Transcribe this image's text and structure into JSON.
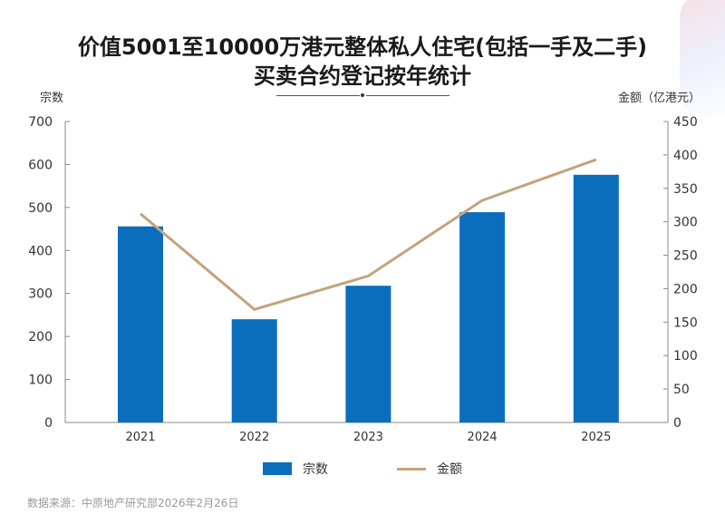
{
  "chart_data": {
    "type": "bar+line",
    "title": "价值5001至10000万港元整体私人住宅(包括一手及二手)",
    "subtitle": "买卖合约登记按年统计",
    "categories": [
      "2021",
      "2022",
      "2023",
      "2024",
      "2025"
    ],
    "series": [
      {
        "name": "宗数",
        "type": "bar",
        "axis": "left",
        "color": "#0a6ebd",
        "values": [
          456,
          240,
          318,
          489,
          576
        ]
      },
      {
        "name": "金额",
        "type": "line",
        "axis": "right",
        "color": "#c2a47c",
        "values": [
          312,
          169,
          219,
          332,
          393
        ]
      }
    ],
    "ylabel_left": "宗数",
    "ylabel_right": "金额（亿港元）",
    "ylim_left": [
      0,
      700
    ],
    "yticks_left": [
      0,
      100,
      200,
      300,
      400,
      500,
      600,
      700
    ],
    "ylim_right": [
      0,
      450
    ],
    "yticks_right": [
      0,
      50,
      100,
      150,
      200,
      250,
      300,
      350,
      400,
      450
    ],
    "grid": false,
    "legend": "bottom"
  },
  "source": "数据来源：中原地产研究部2026年2月26日"
}
